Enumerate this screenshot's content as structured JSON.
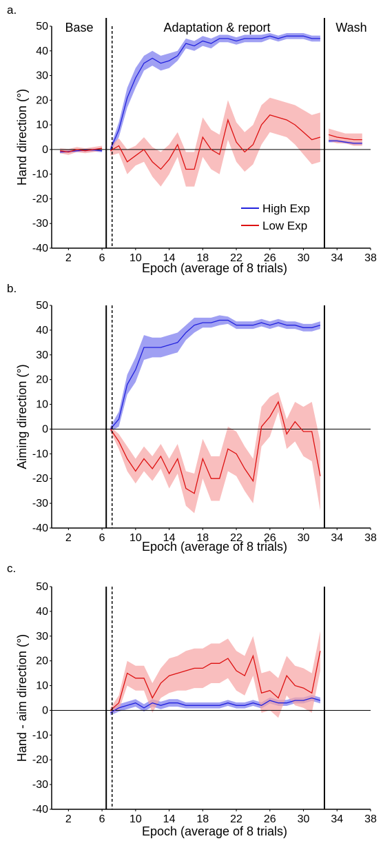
{
  "chart_data": [
    {
      "type": "line",
      "panel_label": "a.",
      "xlabel": "Epoch (average of 8 trials)",
      "ylabel": "Hand direction (°)",
      "xlim": [
        0,
        38
      ],
      "ylim": [
        -40,
        50
      ],
      "x_ticks": [
        2,
        6,
        10,
        14,
        18,
        22,
        26,
        30,
        34,
        38
      ],
      "y_ticks": [
        50,
        40,
        30,
        20,
        10,
        0,
        -10,
        -20,
        -30,
        -40
      ],
      "region_labels": [
        "Base",
        "Adaptation & report",
        "Wash"
      ],
      "phase_boundaries": [
        6.5,
        32.5
      ],
      "dashed_line_x": 7.2,
      "zero_line": true,
      "legend": {
        "placement": "bottom-right",
        "entries": [
          "High Exp",
          "Low Exp"
        ]
      },
      "series": [
        {
          "name": "High Exp",
          "color": "#2222dd",
          "band_color": "#7777ee",
          "segments": [
            {
              "x": [
                1,
                2,
                3,
                4,
                5,
                6
              ],
              "y": [
                -1,
                -0.8,
                -0.5,
                -0.3,
                -0.2,
                -0.5
              ],
              "err": [
                0.6,
                0.6,
                0.6,
                0.6,
                0.6,
                0.6
              ]
            },
            {
              "x": [
                7,
                8,
                9,
                10,
                11,
                12,
                13,
                14,
                15,
                16,
                17,
                18,
                19,
                20,
                21,
                22,
                23,
                24,
                25,
                26,
                27,
                28,
                29,
                30,
                31,
                32
              ],
              "y": [
                0,
                8,
                21,
                29,
                35,
                37,
                35,
                36,
                38,
                43,
                42,
                44,
                43,
                45,
                45,
                44,
                45,
                45,
                45,
                46,
                45,
                46,
                46,
                46,
                45,
                45
              ],
              "err": [
                1,
                3,
                4,
                4,
                3,
                3,
                3,
                3,
                2,
                2,
                2,
                2,
                2,
                1.5,
                1.5,
                1.5,
                1.5,
                1.5,
                1.5,
                1.2,
                1.2,
                1.2,
                1.2,
                1.2,
                1.2,
                1.2
              ]
            },
            {
              "x": [
                33,
                34,
                35,
                36,
                37
              ],
              "y": [
                3.5,
                3.5,
                3,
                2.5,
                2.5
              ],
              "err": [
                0.6,
                0.6,
                0.6,
                0.6,
                0.6
              ]
            }
          ]
        },
        {
          "name": "Low Exp",
          "color": "#dd1111",
          "band_color": "#f6a3a3",
          "segments": [
            {
              "x": [
                1,
                2,
                3,
                4,
                5,
                6
              ],
              "y": [
                -0.5,
                -1,
                0,
                -0.5,
                0,
                0.5
              ],
              "err": [
                1,
                1.2,
                1,
                1,
                1,
                1
              ]
            },
            {
              "x": [
                7,
                8,
                9,
                10,
                11,
                12,
                13,
                14,
                15,
                16,
                17,
                18,
                19,
                20,
                21,
                22,
                23,
                24,
                25,
                26,
                27,
                28,
                29,
                30,
                31,
                32
              ],
              "y": [
                -0.5,
                1.5,
                -5,
                -2.5,
                0,
                -5,
                -8,
                -4,
                2,
                -8,
                -8,
                5,
                0,
                -2,
                12,
                3,
                -1,
                2,
                10,
                14,
                13,
                12,
                10,
                7,
                4,
                5
              ],
              "err": [
                2,
                3,
                5,
                4,
                5,
                6,
                7,
                6,
                5,
                7,
                7,
                8,
                8,
                8,
                8,
                8,
                8,
                8,
                8,
                7,
                7,
                7,
                8,
                9,
                10,
                10
              ]
            },
            {
              "x": [
                33,
                34,
                35,
                36,
                37
              ],
              "y": [
                6,
                5,
                4.5,
                4,
                4
              ],
              "err": [
                2.5,
                2.5,
                2,
                2.5,
                2.5
              ]
            }
          ]
        }
      ]
    },
    {
      "type": "line",
      "panel_label": "b.",
      "xlabel": "Epoch (average of 8 trials)",
      "ylabel": "Aiming direction (°)",
      "xlim": [
        0,
        38
      ],
      "ylim": [
        -40,
        50
      ],
      "x_ticks": [
        2,
        6,
        10,
        14,
        18,
        22,
        26,
        30,
        34,
        38
      ],
      "y_ticks": [
        50,
        40,
        30,
        20,
        10,
        0,
        -10,
        -20,
        -30,
        -40
      ],
      "phase_boundaries": [
        6.5,
        32.5
      ],
      "dashed_line_x": 7.2,
      "zero_line": true,
      "series": [
        {
          "name": "High Exp",
          "color": "#2222dd",
          "band_color": "#7777ee",
          "segments": [
            {
              "x": [
                7,
                8,
                9,
                10,
                11,
                12,
                13,
                14,
                15,
                16,
                17,
                18,
                19,
                20,
                21,
                22,
                23,
                24,
                25,
                26,
                27,
                28,
                29,
                30,
                31,
                32
              ],
              "y": [
                0,
                4,
                18,
                24,
                33,
                33,
                33,
                34,
                35,
                39,
                42,
                43,
                43,
                44,
                44,
                42,
                42,
                42,
                43,
                42,
                43,
                42,
                42,
                41,
                41,
                42
              ],
              "err": [
                1,
                3,
                4,
                5,
                5,
                4,
                4,
                4,
                4,
                3,
                3,
                2,
                2,
                2,
                1.5,
                1.5,
                1.5,
                1.5,
                1.5,
                1.5,
                1.5,
                1.5,
                1.5,
                1.5,
                1.5,
                1.5
              ]
            }
          ]
        },
        {
          "name": "Low Exp",
          "color": "#dd1111",
          "band_color": "#f6a3a3",
          "segments": [
            {
              "x": [
                7,
                8,
                9,
                10,
                11,
                12,
                13,
                14,
                15,
                16,
                17,
                18,
                19,
                20,
                21,
                22,
                23,
                24,
                25,
                26,
                27,
                28,
                29,
                30,
                31,
                32
              ],
              "y": [
                0,
                -5,
                -12,
                -17,
                -12,
                -16,
                -11,
                -18,
                -12,
                -24,
                -26,
                -12,
                -20,
                -20,
                -8,
                -10,
                -16,
                -21,
                1,
                5,
                11,
                -2,
                3,
                -1,
                -1,
                -19
              ],
              "err": [
                1,
                3,
                5,
                5,
                5,
                5,
                5,
                6,
                6,
                7,
                8,
                8,
                9,
                9,
                9,
                9,
                9,
                9,
                8,
                8,
                4,
                6,
                8,
                10,
                12,
                14
              ]
            }
          ]
        }
      ]
    },
    {
      "type": "line",
      "panel_label": "c.",
      "xlabel": "Epoch (average of 8 trials)",
      "ylabel": "Hand - aim direction (°)",
      "xlim": [
        0,
        38
      ],
      "ylim": [
        -40,
        50
      ],
      "x_ticks": [
        2,
        6,
        10,
        14,
        18,
        22,
        26,
        30,
        34,
        38
      ],
      "y_ticks": [
        50,
        40,
        30,
        20,
        10,
        0,
        -10,
        -20,
        -30,
        -40
      ],
      "phase_boundaries": [
        6.5,
        32.5
      ],
      "dashed_line_x": 7.2,
      "zero_line": true,
      "series": [
        {
          "name": "High Exp",
          "color": "#2222dd",
          "band_color": "#7777ee",
          "segments": [
            {
              "x": [
                7,
                8,
                9,
                10,
                11,
                12,
                13,
                14,
                15,
                16,
                17,
                18,
                19,
                20,
                21,
                22,
                23,
                24,
                25,
                26,
                27,
                28,
                29,
                30,
                31,
                32
              ],
              "y": [
                -1,
                1,
                2,
                3,
                1,
                3,
                2,
                3,
                3,
                2,
                2,
                2,
                2,
                2,
                3,
                2,
                2,
                3,
                2,
                4,
                3,
                3,
                4,
                4,
                5,
                4
              ],
              "err": [
                1,
                1.5,
                1.5,
                1.5,
                1.5,
                1.5,
                1.5,
                1.5,
                1.5,
                1.2,
                1.2,
                1.2,
                1.2,
                1.2,
                1.2,
                1.2,
                1.2,
                1.2,
                1.2,
                1.2,
                1.2,
                1.2,
                1.2,
                1.2,
                1.2,
                1.2
              ]
            }
          ]
        },
        {
          "name": "Low Exp",
          "color": "#dd1111",
          "band_color": "#f6a3a3",
          "segments": [
            {
              "x": [
                7,
                8,
                9,
                10,
                11,
                12,
                13,
                14,
                15,
                16,
                17,
                18,
                19,
                20,
                21,
                22,
                23,
                24,
                25,
                26,
                27,
                28,
                29,
                30,
                31,
                32
              ],
              "y": [
                0,
                3,
                15,
                13,
                13,
                5,
                11,
                14,
                15,
                16,
                17,
                17,
                19,
                19,
                21,
                16,
                14,
                22,
                7,
                8,
                5,
                14,
                10,
                9,
                7,
                24
              ],
              "err": [
                1,
                3,
                5,
                5,
                5,
                6,
                6,
                7,
                7,
                8,
                8,
                8,
                8,
                8,
                8,
                8,
                8,
                8,
                8,
                8,
                8,
                8,
                8,
                8,
                8,
                8
              ]
            }
          ]
        }
      ]
    }
  ]
}
